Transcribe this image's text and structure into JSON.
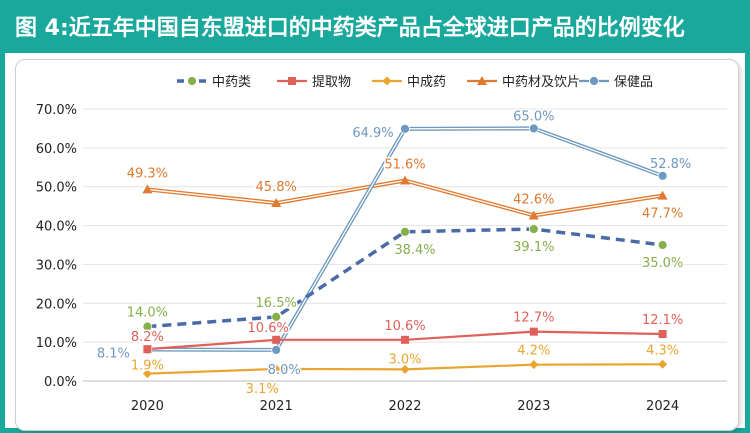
{
  "title": "图 4:近五年中国自东盟进口的中药类产品占全球进口产品的比例变化",
  "colors": {
    "header": "#1aa79c",
    "tcm": "#4a6aa8",
    "tcm_marker": "#86b04b",
    "extract": "#e0605a",
    "patent": "#e8a630",
    "herbal": "#e07a30",
    "health": "#6f9ac0"
  },
  "chart_data": {
    "type": "line",
    "title": "图 4:近五年中国自东盟进口的中药类产品占全球进口产品的比例变化",
    "xlabel": "",
    "ylabel": "",
    "categories": [
      "2020",
      "2021",
      "2022",
      "2023",
      "2024"
    ],
    "y_ticks": [
      "0.0%",
      "10.0%",
      "20.0%",
      "30.0%",
      "40.0%",
      "50.0%",
      "60.0%",
      "70.0%"
    ],
    "ylim": [
      0,
      70
    ],
    "legend_position": "top",
    "grid": true,
    "series": [
      {
        "name": "中药类",
        "values": [
          14.0,
          16.5,
          38.4,
          39.1,
          35.0
        ],
        "labels": [
          "14.0%",
          "16.5%",
          "38.4%",
          "39.1%",
          "35.0%"
        ]
      },
      {
        "name": "提取物",
        "values": [
          8.2,
          10.6,
          10.6,
          12.7,
          12.1
        ],
        "labels": [
          "8.2%",
          "10.6%",
          "10.6%",
          "12.7%",
          "12.1%"
        ]
      },
      {
        "name": "中成药",
        "values": [
          1.9,
          3.1,
          3.0,
          4.2,
          4.3
        ],
        "labels": [
          "1.9%",
          "3.1%",
          "3.0%",
          "4.2%",
          "4.3%"
        ]
      },
      {
        "name": "中药材及饮片",
        "values": [
          49.3,
          45.8,
          51.6,
          42.6,
          47.7
        ],
        "labels": [
          "49.3%",
          "45.8%",
          "51.6%",
          "42.6%",
          "47.7%"
        ]
      },
      {
        "name": "保健品",
        "values": [
          8.1,
          8.0,
          64.9,
          65.0,
          52.8
        ],
        "labels": [
          "8.1%",
          "8.0%",
          "64.9%",
          "65.0%",
          "52.8%"
        ]
      }
    ]
  }
}
